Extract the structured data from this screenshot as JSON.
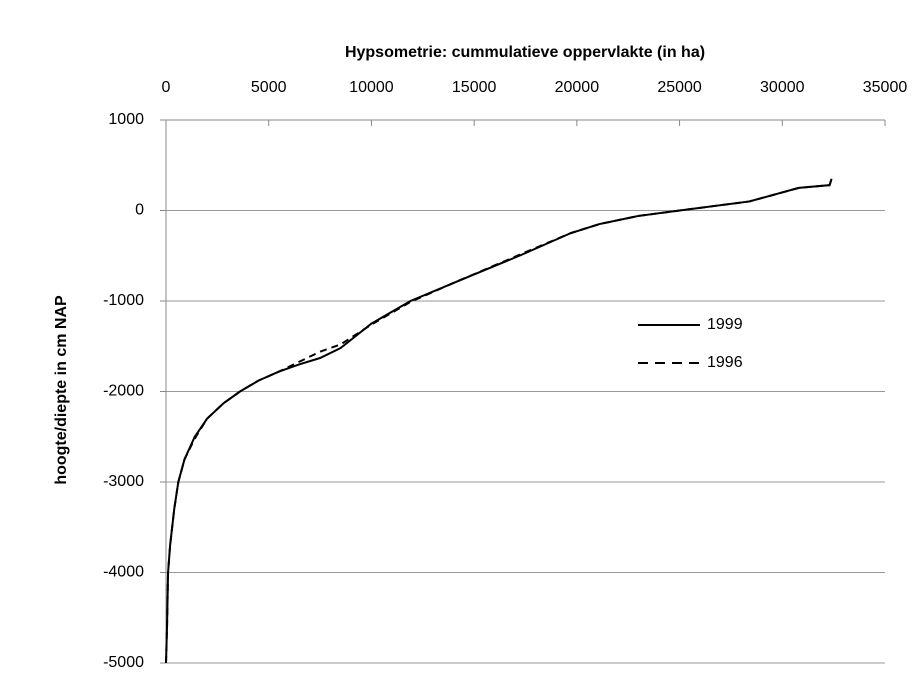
{
  "chart_data": {
    "type": "line",
    "title": "Hypsometrie: cummulatieve oppervlakte (in ha)",
    "y_label": "hoogte/diepte in cm NAP",
    "x": [
      0,
      50,
      100,
      200,
      400,
      600,
      900,
      1400,
      2000,
      2800,
      3600,
      4500,
      5500,
      6500,
      7500,
      8500,
      10000,
      11900,
      14000,
      17200,
      19700,
      21100,
      23000,
      25000,
      28400,
      30800,
      32300,
      32400
    ],
    "series": [
      {
        "name": "1999",
        "color": "#000000",
        "dash": false,
        "values": [
          -5000,
          -4600,
          -4000,
          -3700,
          -3300,
          -3000,
          -2750,
          -2500,
          -2300,
          -2130,
          -2000,
          -1880,
          -1780,
          -1700,
          -1630,
          -1520,
          -1250,
          -1000,
          -800,
          -500,
          -250,
          -150,
          -60,
          0,
          100,
          250,
          280,
          350
        ]
      },
      {
        "name": "1996",
        "color": "#000000",
        "dash": true,
        "values": [
          -5000,
          -4600,
          -4000,
          -3700,
          -3300,
          -3000,
          -2750,
          -2520,
          -2300,
          -2130,
          -2000,
          -1880,
          -1780,
          -1670,
          -1560,
          -1480,
          -1260,
          -1010,
          -800,
          -490,
          -250,
          -150,
          -60,
          0,
          100,
          250,
          280,
          350
        ]
      }
    ],
    "xlim": [
      0,
      35000
    ],
    "xticks": [
      0,
      5000,
      10000,
      15000,
      20000,
      25000,
      30000,
      35000
    ],
    "ylim": [
      -5000,
      1000
    ],
    "yticks": [
      -5000,
      -4000,
      -3000,
      -2000,
      -1000,
      0,
      1000
    ],
    "grid": true,
    "legend": "right"
  }
}
